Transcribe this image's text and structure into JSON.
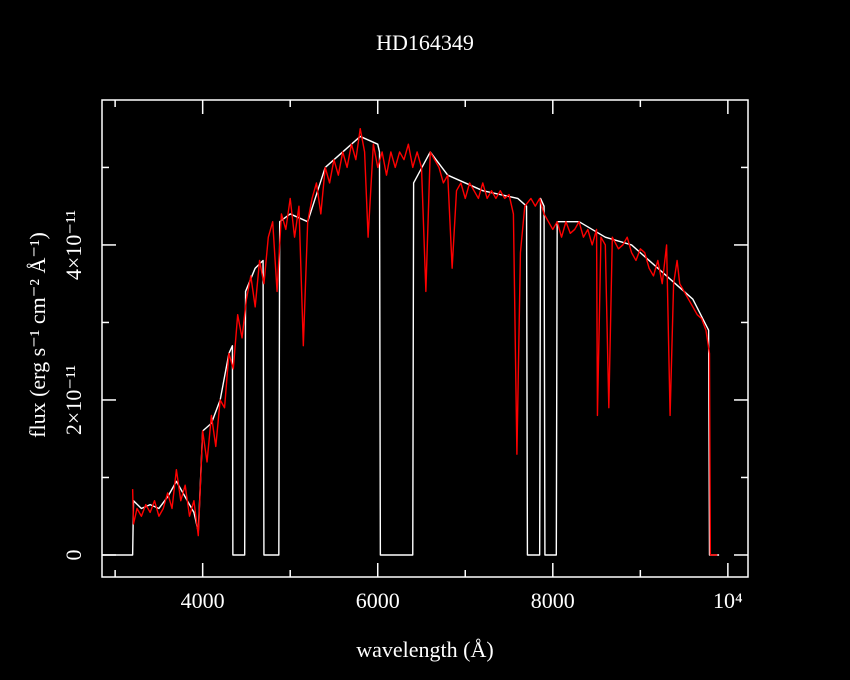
{
  "chart_data": {
    "type": "line",
    "title": "HD164349",
    "xlabel": "wavelength (Å)",
    "ylabel": "flux (erg s⁻¹ cm⁻² Å⁻¹)",
    "xlim": [
      2850,
      10230
    ],
    "ylim": [
      -2.84e-12,
      5.87e-11
    ],
    "xticks": [
      4000,
      6000,
      8000,
      {
        "value": 10000,
        "label": "10⁴"
      }
    ],
    "xminorticks": [
      3000,
      5000,
      7000,
      9000
    ],
    "yticks": [
      0,
      {
        "value": 2e-11,
        "label": "2×10⁻¹¹"
      },
      {
        "value": 4e-11,
        "label": "4×10⁻¹¹"
      }
    ],
    "yminorticks": [
      1e-11,
      3e-11,
      5e-11
    ],
    "series": [
      {
        "color": "#ffffff",
        "x": [
          2850,
          3200,
          3210,
          3300,
          3400,
          3500,
          3600,
          3700,
          3800,
          3900,
          3950,
          4000,
          4100,
          4200,
          4300,
          4340,
          4345,
          4480,
          4490,
          4600,
          4690,
          4700,
          4870,
          4880,
          5000,
          5200,
          5400,
          5600,
          5800,
          6000,
          6020,
          6030,
          6400,
          6410,
          6600,
          6800,
          7000,
          7200,
          7400,
          7600,
          7700,
          7710,
          7850,
          7860,
          7900,
          7910,
          8040,
          8050,
          8300,
          8600,
          8900,
          9200,
          9400,
          9600,
          9780,
          9790,
          9900
        ],
        "values": [
          0,
          0,
          7e-12,
          6e-12,
          6.5e-12,
          6e-12,
          7.5e-12,
          9.5e-12,
          7.5e-12,
          5.5e-12,
          3e-12,
          1.6e-11,
          1.7e-11,
          2e-11,
          2.6e-11,
          2.7e-11,
          0,
          0,
          3.4e-11,
          3.7e-11,
          3.8e-11,
          0,
          0,
          4.3e-11,
          4.4e-11,
          4.3e-11,
          5e-11,
          5.2e-11,
          5.4e-11,
          5.3e-11,
          5.2e-11,
          0,
          0,
          4.8e-11,
          5.2e-11,
          4.9e-11,
          4.8e-11,
          4.7e-11,
          4.65e-11,
          4.6e-11,
          4.5e-11,
          0,
          0,
          4.6e-11,
          4.5e-11,
          0,
          0,
          4.3e-11,
          4.3e-11,
          4.1e-11,
          4e-11,
          3.7e-11,
          3.5e-11,
          3.3e-11,
          2.9e-11,
          0,
          0
        ]
      },
      {
        "color": "#ff0000",
        "x": [
          3200,
          3210,
          3250,
          3300,
          3350,
          3400,
          3450,
          3500,
          3550,
          3600,
          3650,
          3700,
          3750,
          3800,
          3850,
          3900,
          3950,
          4000,
          4050,
          4100,
          4150,
          4200,
          4250,
          4300,
          4350,
          4400,
          4450,
          4500,
          4550,
          4600,
          4650,
          4700,
          4750,
          4800,
          4850,
          4900,
          4950,
          5000,
          5050,
          5100,
          5150,
          5200,
          5250,
          5300,
          5350,
          5400,
          5450,
          5500,
          5550,
          5600,
          5650,
          5700,
          5750,
          5800,
          5850,
          5890,
          5950,
          6000,
          6050,
          6100,
          6150,
          6200,
          6250,
          6300,
          6350,
          6400,
          6450,
          6500,
          6550,
          6600,
          6650,
          6700,
          6750,
          6800,
          6850,
          6900,
          6950,
          7000,
          7050,
          7100,
          7150,
          7200,
          7250,
          7300,
          7350,
          7400,
          7450,
          7500,
          7550,
          7590,
          7630,
          7680,
          7750,
          7800,
          7850,
          7900,
          7950,
          8000,
          8050,
          8100,
          8150,
          8200,
          8250,
          8300,
          8350,
          8400,
          8450,
          8500,
          8510,
          8550,
          8600,
          8640,
          8680,
          8750,
          8800,
          8850,
          8900,
          8950,
          9000,
          9050,
          9100,
          9150,
          9200,
          9250,
          9300,
          9340,
          9380,
          9420,
          9450,
          9500,
          9550,
          9600,
          9650,
          9700,
          9750,
          9790,
          9800,
          9880
        ],
        "values": [
          8.5e-12,
          4e-12,
          6e-12,
          5e-12,
          6.5e-12,
          5.5e-12,
          7e-12,
          5e-12,
          6e-12,
          8e-12,
          6e-12,
          1.1e-11,
          7e-12,
          9e-12,
          5e-12,
          7e-12,
          2.5e-12,
          1.6e-11,
          1.2e-11,
          1.8e-11,
          1.4e-11,
          2e-11,
          1.9e-11,
          2.6e-11,
          2.4e-11,
          3.1e-11,
          2.8e-11,
          3.3e-11,
          3.6e-11,
          3.2e-11,
          3.8e-11,
          3.5e-11,
          4.1e-11,
          4.3e-11,
          3.4e-11,
          4.4e-11,
          4.2e-11,
          4.6e-11,
          4.1e-11,
          4.5e-11,
          2.7e-11,
          4.3e-11,
          4.6e-11,
          4.8e-11,
          4.4e-11,
          5e-11,
          4.8e-11,
          5.1e-11,
          4.9e-11,
          5.2e-11,
          5e-11,
          5.3e-11,
          5.1e-11,
          5.5e-11,
          5.2e-11,
          4.1e-11,
          5.3e-11,
          5e-11,
          5.2e-11,
          4.9e-11,
          5.2e-11,
          5e-11,
          5.2e-11,
          5.1e-11,
          5.3e-11,
          5e-11,
          5.2e-11,
          5e-11,
          3.4e-11,
          5.2e-11,
          5.1e-11,
          5e-11,
          4.8e-11,
          4.9e-11,
          3.7e-11,
          4.7e-11,
          4.8e-11,
          4.6e-11,
          4.8e-11,
          4.7e-11,
          4.6e-11,
          4.8e-11,
          4.6e-11,
          4.7e-11,
          4.6e-11,
          4.7e-11,
          4.6e-11,
          4.65e-11,
          4.4e-11,
          1.3e-11,
          3.9e-11,
          4.5e-11,
          4.6e-11,
          4.5e-11,
          4.6e-11,
          4.4e-11,
          4.3e-11,
          4.2e-11,
          4.3e-11,
          4.1e-11,
          4.3e-11,
          4.15e-11,
          4.2e-11,
          4.3e-11,
          4.1e-11,
          4.2e-11,
          4e-11,
          4.2e-11,
          1.8e-11,
          4.1e-11,
          4e-11,
          1.9e-11,
          4.1e-11,
          3.95e-11,
          4e-11,
          4.1e-11,
          3.9e-11,
          3.8e-11,
          3.95e-11,
          3.9e-11,
          3.7e-11,
          3.6e-11,
          3.8e-11,
          3.5e-11,
          4e-11,
          1.8e-11,
          3.5e-11,
          3.8e-11,
          3.5e-11,
          3.4e-11,
          3.3e-11,
          3.2e-11,
          3.1e-11,
          3.05e-11,
          2.9e-11,
          2.6e-11,
          0,
          0
        ]
      }
    ]
  }
}
